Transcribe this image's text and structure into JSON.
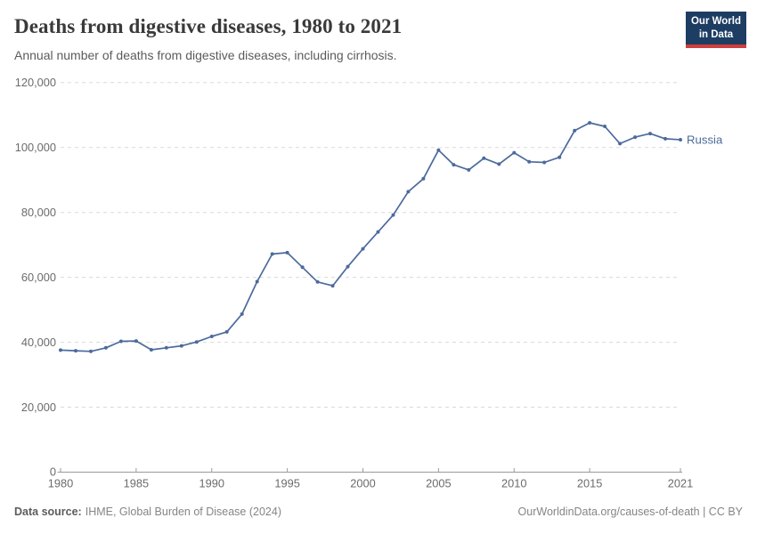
{
  "header": {
    "title": "Deaths from digestive diseases, 1980 to 2021",
    "subtitle": "Annual number of deaths from digestive diseases, including cirrhosis.",
    "logo": {
      "line1": "Our World",
      "line2": "in Data"
    }
  },
  "chart_data": {
    "type": "line",
    "title": "Deaths from digestive diseases, 1980 to 2021",
    "subtitle": "Annual number of deaths from digestive diseases, including cirrhosis.",
    "xlabel": "",
    "ylabel": "",
    "xlim": [
      1980,
      2021
    ],
    "ylim": [
      0,
      120000
    ],
    "grid": "horizontal-dashed",
    "legend_position": "end-of-line",
    "xticks": [
      1980,
      1985,
      1990,
      1995,
      2000,
      2005,
      2010,
      2015,
      2021
    ],
    "yticks": [
      0,
      20000,
      40000,
      60000,
      80000,
      100000,
      120000
    ],
    "ytick_labels": [
      "0",
      "20,000",
      "40,000",
      "60,000",
      "80,000",
      "100,000",
      "120,000"
    ],
    "x": [
      1980,
      1981,
      1982,
      1983,
      1984,
      1985,
      1986,
      1987,
      1988,
      1989,
      1990,
      1991,
      1992,
      1993,
      1994,
      1995,
      1996,
      1997,
      1998,
      1999,
      2000,
      2001,
      2002,
      2003,
      2004,
      2005,
      2006,
      2007,
      2008,
      2009,
      2010,
      2011,
      2012,
      2013,
      2014,
      2015,
      2016,
      2017,
      2018,
      2019,
      2020,
      2021
    ],
    "series": [
      {
        "name": "Russia",
        "color": "#4c6a9c",
        "values": [
          37600,
          37400,
          37200,
          38300,
          40300,
          40400,
          37700,
          38300,
          38900,
          40100,
          41800,
          43200,
          48700,
          58700,
          67200,
          67600,
          63100,
          58600,
          57400,
          63300,
          68800,
          74000,
          79200,
          86400,
          90400,
          99200,
          94700,
          93100,
          96700,
          94900,
          98400,
          95600,
          95400,
          97000,
          105200,
          107600,
          106500,
          101200,
          103200,
          104300,
          102700,
          102400
        ]
      }
    ]
  },
  "footer": {
    "source_label": "Data source:",
    "source_value": "IHME, Global Burden of Disease (2024)",
    "link_text": "OurWorldinData.org/causes-of-death",
    "separator": " | ",
    "license_text": "CC BY"
  },
  "colors": {
    "accent_line": "#4c6a9c",
    "logo_bg": "#1d3d63",
    "logo_accent": "#cf3e3c",
    "grid": "#dadada",
    "axis": "#9a9a9a",
    "tick_label": "#6b6b6b",
    "title_text": "#3a3a3a",
    "subtitle_text": "#5b5b5b",
    "footer_text": "#858585"
  }
}
